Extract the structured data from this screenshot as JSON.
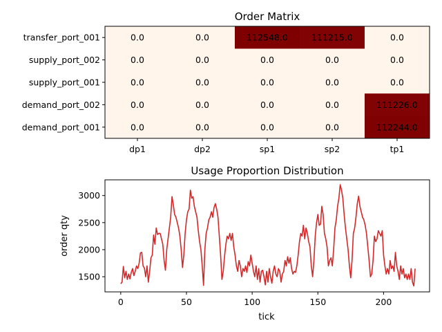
{
  "chart_data": [
    {
      "type": "heatmap",
      "title": "Order Matrix",
      "x_categories": [
        "dp1",
        "dp2",
        "sp1",
        "sp2",
        "tp1"
      ],
      "y_categories": [
        "transfer_port_001",
        "supply_port_002",
        "supply_port_001",
        "demand_port_002",
        "demand_port_001"
      ],
      "values": [
        [
          0,
          0,
          112548,
          111215,
          0
        ],
        [
          0,
          0,
          0,
          0,
          0
        ],
        [
          0,
          0,
          0,
          0,
          0
        ],
        [
          0,
          0,
          0,
          0,
          111226
        ],
        [
          0,
          0,
          0,
          0,
          112244
        ]
      ],
      "value_labels": [
        [
          "0.0",
          "0.0",
          "112548.0",
          "111215.0",
          "0.0"
        ],
        [
          "0.0",
          "0.0",
          "0.0",
          "0.0",
          "0.0"
        ],
        [
          "0.0",
          "0.0",
          "0.0",
          "0.0",
          "0.0"
        ],
        [
          "0.0",
          "0.0",
          "0.0",
          "0.0",
          "111226.0"
        ],
        [
          "0.0",
          "0.0",
          "0.0",
          "0.0",
          "112244.0"
        ]
      ],
      "colormap": {
        "low": "#fff5eb",
        "high": "#7f0000"
      },
      "grid": false
    },
    {
      "type": "line",
      "title": "Usage Proportion Distribution",
      "xlabel": "tick",
      "ylabel": "order qty",
      "xlim": [
        -12,
        235
      ],
      "ylim": [
        1220,
        3290
      ],
      "xticks": [
        0,
        50,
        100,
        150,
        200
      ],
      "yticks": [
        1500,
        2000,
        2500,
        3000
      ],
      "grid": false,
      "series": [
        {
          "color": "#d62728",
          "values": [
            1370,
            1400,
            1690,
            1480,
            1600,
            1450,
            1550,
            1460,
            1580,
            1650,
            1520,
            1600,
            1700,
            1650,
            1750,
            1940,
            1950,
            1700,
            1660,
            1500,
            1700,
            1400,
            1600,
            1850,
            1900,
            2270,
            2100,
            2400,
            2280,
            2300,
            2300,
            2200,
            2100,
            1800,
            1620,
            2000,
            2200,
            2400,
            2600,
            2980,
            2830,
            2650,
            2600,
            2500,
            2400,
            2250,
            2000,
            1670,
            1900,
            2300,
            2550,
            2700,
            2750,
            3100,
            2950,
            2980,
            2800,
            2700,
            2600,
            2350,
            2150,
            2000,
            1700,
            1340,
            2000,
            2300,
            2400,
            2550,
            2600,
            2700,
            2600,
            2780,
            2850,
            2750,
            2600,
            2250,
            1900,
            1450,
            1600,
            1880,
            2100,
            2250,
            2200,
            2300,
            2170,
            2300,
            2050,
            1900,
            1700,
            1600,
            1800,
            1700,
            1500,
            1650,
            1600,
            1700,
            1580,
            1780,
            1700,
            1900,
            1750,
            1600,
            1500,
            1700,
            1450,
            1650,
            1400,
            1600,
            1620,
            1500,
            1350,
            1600,
            1400,
            1650,
            1500,
            1380,
            1600,
            1700,
            1550,
            1500,
            1650,
            1600,
            1400,
            1550,
            1600,
            1800,
            1700,
            1870,
            1750,
            1850,
            1650,
            1550,
            1600,
            1580,
            1700,
            1900,
            2150,
            2300,
            2250,
            2450,
            2200,
            2400,
            2300,
            2150,
            2050,
            1700,
            1500,
            1800,
            2250,
            2500,
            2650,
            2450,
            2470,
            2800,
            2650,
            2300,
            2200,
            2050,
            1700,
            1800,
            1850,
            1700,
            2000,
            2400,
            2550,
            2800,
            2950,
            3200,
            3100,
            2950,
            2650,
            2400,
            2200,
            2000,
            1700,
            1480,
            1800,
            2300,
            2400,
            2600,
            2850,
            2990,
            2800,
            2700,
            2600,
            2550,
            2450,
            2300,
            2050,
            1800,
            1500,
            1550,
            1800,
            2250,
            2150,
            2200,
            2350,
            2300,
            2250,
            2350,
            1900,
            1700,
            1550,
            1650,
            1550,
            1800,
            1650,
            1700,
            1600,
            1950,
            1700,
            1600,
            1450,
            1700,
            1550,
            1650,
            1480,
            1550,
            1450,
            1550,
            1450,
            1650,
            1400,
            1330,
            1650
          ]
        }
      ]
    }
  ]
}
